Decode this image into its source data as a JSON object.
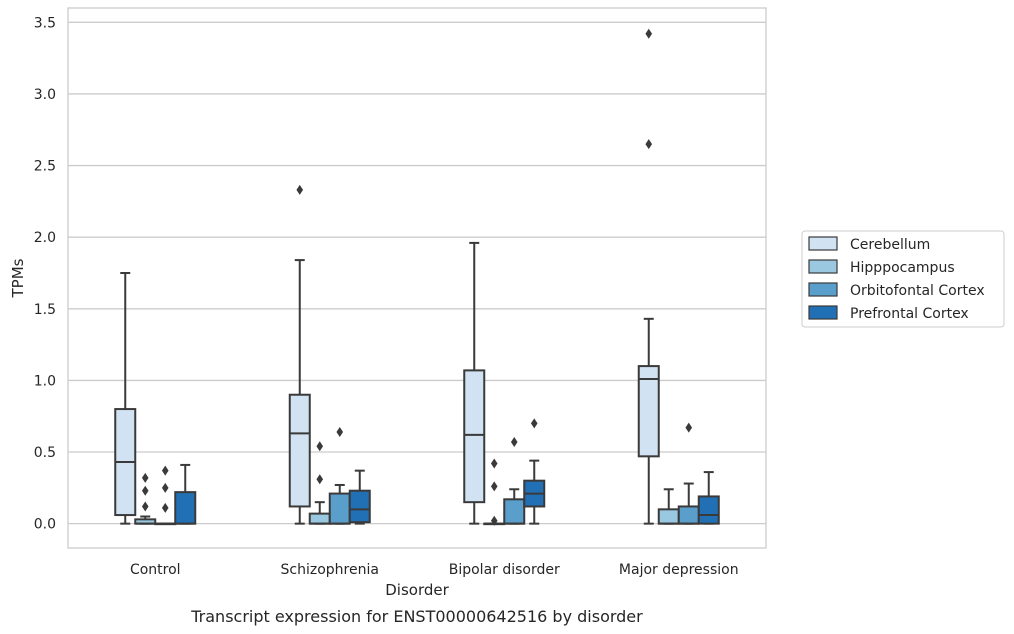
{
  "chart_data": {
    "type": "box",
    "title": "Transcript expression for ENST00000642516 by disorder",
    "xlabel": "Disorder",
    "ylabel": "TPMs",
    "ylim": [
      -0.17,
      3.6
    ],
    "yticks": [
      "0.0",
      "0.5",
      "1.0",
      "1.5",
      "2.0",
      "2.5",
      "3.0",
      "3.5"
    ],
    "grid": "horizontal",
    "legend_position": "right",
    "categories": [
      "Control",
      "Schizophrenia",
      "Bipolar disorder",
      "Major depression"
    ],
    "series": [
      {
        "name": "Cerebellum",
        "color": "#d1e2f2",
        "boxes": [
          {
            "whislo": 0.0,
            "q1": 0.06,
            "med": 0.43,
            "q3": 0.8,
            "whishi": 1.75,
            "fliers": []
          },
          {
            "whislo": 0.0,
            "q1": 0.12,
            "med": 0.63,
            "q3": 0.9,
            "whishi": 1.84,
            "fliers": [
              2.33
            ]
          },
          {
            "whislo": 0.0,
            "q1": 0.15,
            "med": 0.62,
            "q3": 1.07,
            "whishi": 1.96,
            "fliers": []
          },
          {
            "whislo": 0.0,
            "q1": 0.47,
            "med": 1.01,
            "q3": 1.1,
            "whishi": 1.43,
            "fliers": [
              2.65,
              3.42
            ]
          }
        ]
      },
      {
        "name": "Hipppocampus",
        "color": "#9ac8e0",
        "boxes": [
          {
            "whislo": 0.0,
            "q1": 0.0,
            "med": 0.0,
            "q3": 0.03,
            "whishi": 0.05,
            "fliers": [
              0.12,
              0.23,
              0.32
            ]
          },
          {
            "whislo": 0.0,
            "q1": 0.0,
            "med": 0.0,
            "q3": 0.07,
            "whishi": 0.15,
            "fliers": [
              0.31,
              0.54
            ]
          },
          {
            "whislo": 0.0,
            "q1": 0.0,
            "med": 0.0,
            "q3": 0.0,
            "whishi": 0.0,
            "fliers": [
              0.02,
              0.26,
              0.42
            ]
          },
          {
            "whislo": 0.0,
            "q1": 0.0,
            "med": 0.0,
            "q3": 0.1,
            "whishi": 0.24,
            "fliers": []
          }
        ]
      },
      {
        "name": "Orbitofontal Cortex",
        "color": "#5a9ecc",
        "boxes": [
          {
            "whislo": 0.0,
            "q1": 0.0,
            "med": 0.0,
            "q3": 0.0,
            "whishi": 0.0,
            "fliers": [
              0.11,
              0.25,
              0.37
            ]
          },
          {
            "whislo": 0.0,
            "q1": 0.0,
            "med": 0.0,
            "q3": 0.21,
            "whishi": 0.27,
            "fliers": [
              0.64
            ]
          },
          {
            "whislo": 0.0,
            "q1": 0.0,
            "med": 0.0,
            "q3": 0.17,
            "whishi": 0.24,
            "fliers": [
              0.57
            ]
          },
          {
            "whislo": 0.0,
            "q1": 0.0,
            "med": 0.0,
            "q3": 0.12,
            "whishi": 0.28,
            "fliers": [
              0.67
            ]
          }
        ]
      },
      {
        "name": "Prefrontal Cortex",
        "color": "#2170b5",
        "boxes": [
          {
            "whislo": 0.0,
            "q1": 0.0,
            "med": 0.0,
            "q3": 0.22,
            "whishi": 0.41,
            "fliers": []
          },
          {
            "whislo": 0.0,
            "q1": 0.01,
            "med": 0.1,
            "q3": 0.23,
            "whishi": 0.37,
            "fliers": []
          },
          {
            "whislo": 0.0,
            "q1": 0.12,
            "med": 0.21,
            "q3": 0.3,
            "whishi": 0.44,
            "fliers": [
              0.7
            ]
          },
          {
            "whislo": 0.0,
            "q1": 0.0,
            "med": 0.06,
            "q3": 0.19,
            "whishi": 0.36,
            "fliers": []
          }
        ]
      }
    ]
  }
}
